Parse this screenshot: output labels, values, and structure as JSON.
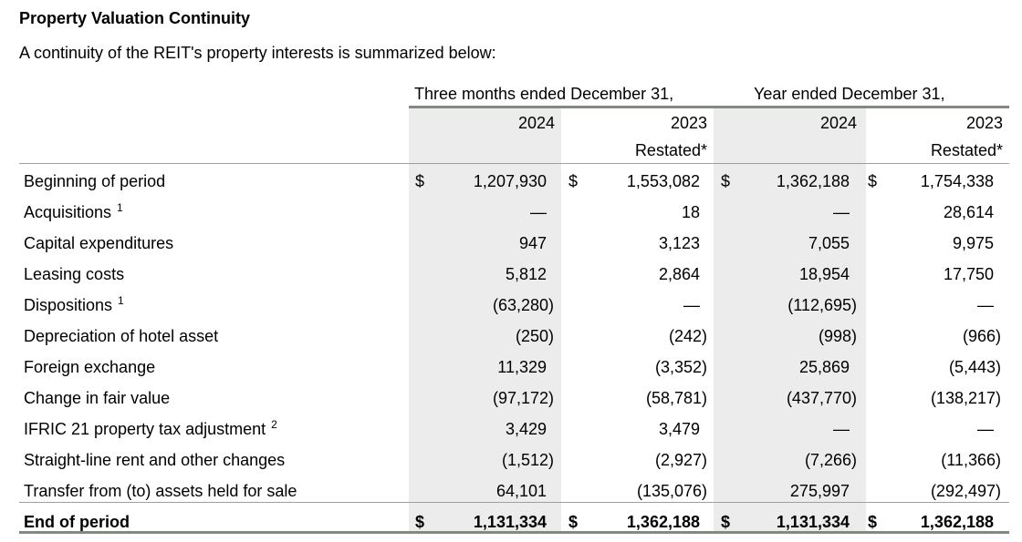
{
  "title": "Property Valuation Continuity",
  "subtitle": "A continuity of the REIT's property interests is summarized below:",
  "headers": {
    "group_three_months": "Three months ended December 31,",
    "group_year": "Year ended December 31,",
    "col1_year": "2024",
    "col2_year": "2023",
    "col2_note": "Restated*",
    "col3_year": "2024",
    "col4_year": "2023",
    "col4_note": "Restated*"
  },
  "currency_symbol": "$",
  "rows": [
    {
      "label": "Beginning of period",
      "sup": "",
      "values": [
        "1,207,930",
        "1,553,082",
        "1,362,188",
        "1,754,338"
      ]
    },
    {
      "label": "Acquisitions",
      "sup": "1",
      "values": [
        "—",
        "18",
        "—",
        "28,614"
      ]
    },
    {
      "label": "Capital expenditures",
      "sup": "",
      "values": [
        "947",
        "3,123",
        "7,055",
        "9,975"
      ]
    },
    {
      "label": "Leasing costs",
      "sup": "",
      "values": [
        "5,812",
        "2,864",
        "18,954",
        "17,750"
      ]
    },
    {
      "label": "Dispositions",
      "sup": "1",
      "values": [
        "(63,280)",
        "—",
        "(112,695)",
        "—"
      ]
    },
    {
      "label": "Depreciation of hotel asset",
      "sup": "",
      "values": [
        "(250)",
        "(242)",
        "(998)",
        "(966)"
      ]
    },
    {
      "label": "Foreign exchange",
      "sup": "",
      "values": [
        "11,329",
        "(3,352)",
        "25,869",
        "(5,443)"
      ]
    },
    {
      "label": "Change in fair value",
      "sup": "",
      "values": [
        "(97,172)",
        "(58,781)",
        "(437,770)",
        "(138,217)"
      ]
    },
    {
      "label": "IFRIC 21 property tax adjustment",
      "sup": "2",
      "values": [
        "3,429",
        "3,479",
        "—",
        "—"
      ]
    },
    {
      "label": "Straight-line rent and other changes",
      "sup": "",
      "values": [
        "(1,512)",
        "(2,927)",
        "(7,266)",
        "(11,366)"
      ]
    },
    {
      "label": "Transfer from (to) assets held for sale",
      "sup": "",
      "values": [
        "64,101",
        "(135,076)",
        "275,997",
        "(292,497)"
      ]
    }
  ],
  "total_row": {
    "label": "End of period",
    "values": [
      "1,131,334",
      "1,362,188",
      "1,131,334",
      "1,362,188"
    ]
  }
}
